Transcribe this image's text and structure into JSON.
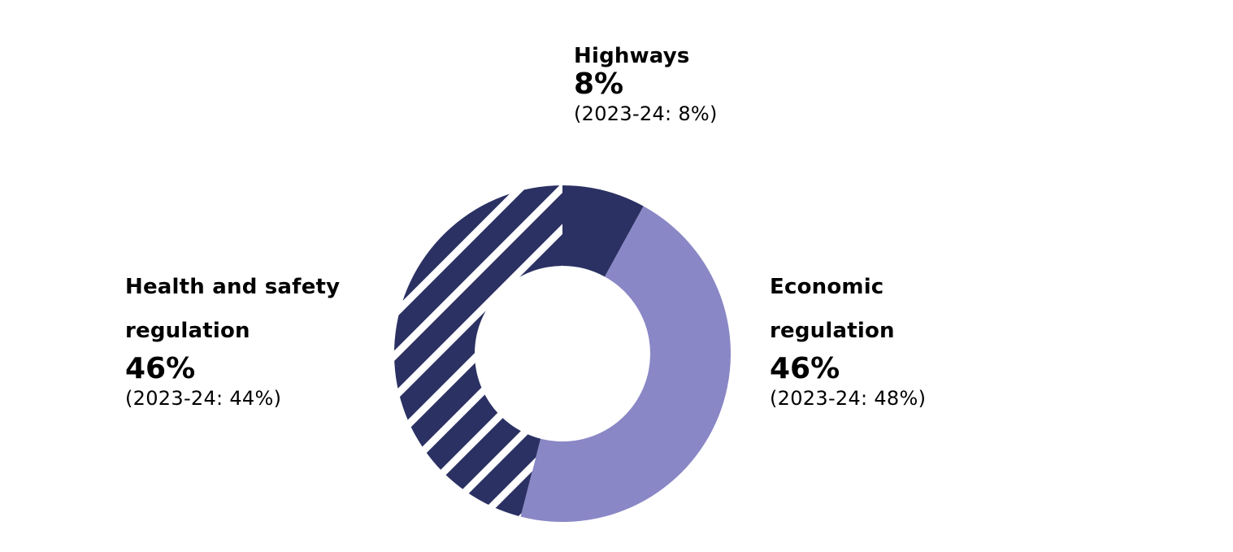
{
  "chart_data": {
    "type": "pie",
    "variant": "donut",
    "legend": "none",
    "slices": [
      {
        "name": "Highways",
        "value": 8,
        "value_label": "8%",
        "previous_label": "(2023-24: 8%)",
        "color": "#2b3163",
        "pattern": "solid"
      },
      {
        "name": "Economic regulation",
        "value": 46,
        "value_label": "46%",
        "previous_label": "(2023-24: 48%)",
        "color": "#8a87c6",
        "pattern": "solid"
      },
      {
        "name": "Health and safety regulation",
        "value": 46,
        "value_label": "46%",
        "previous_label": "(2023-24: 44%)",
        "color": "#2b3163",
        "pattern": "diagonal-stripes"
      }
    ]
  }
}
